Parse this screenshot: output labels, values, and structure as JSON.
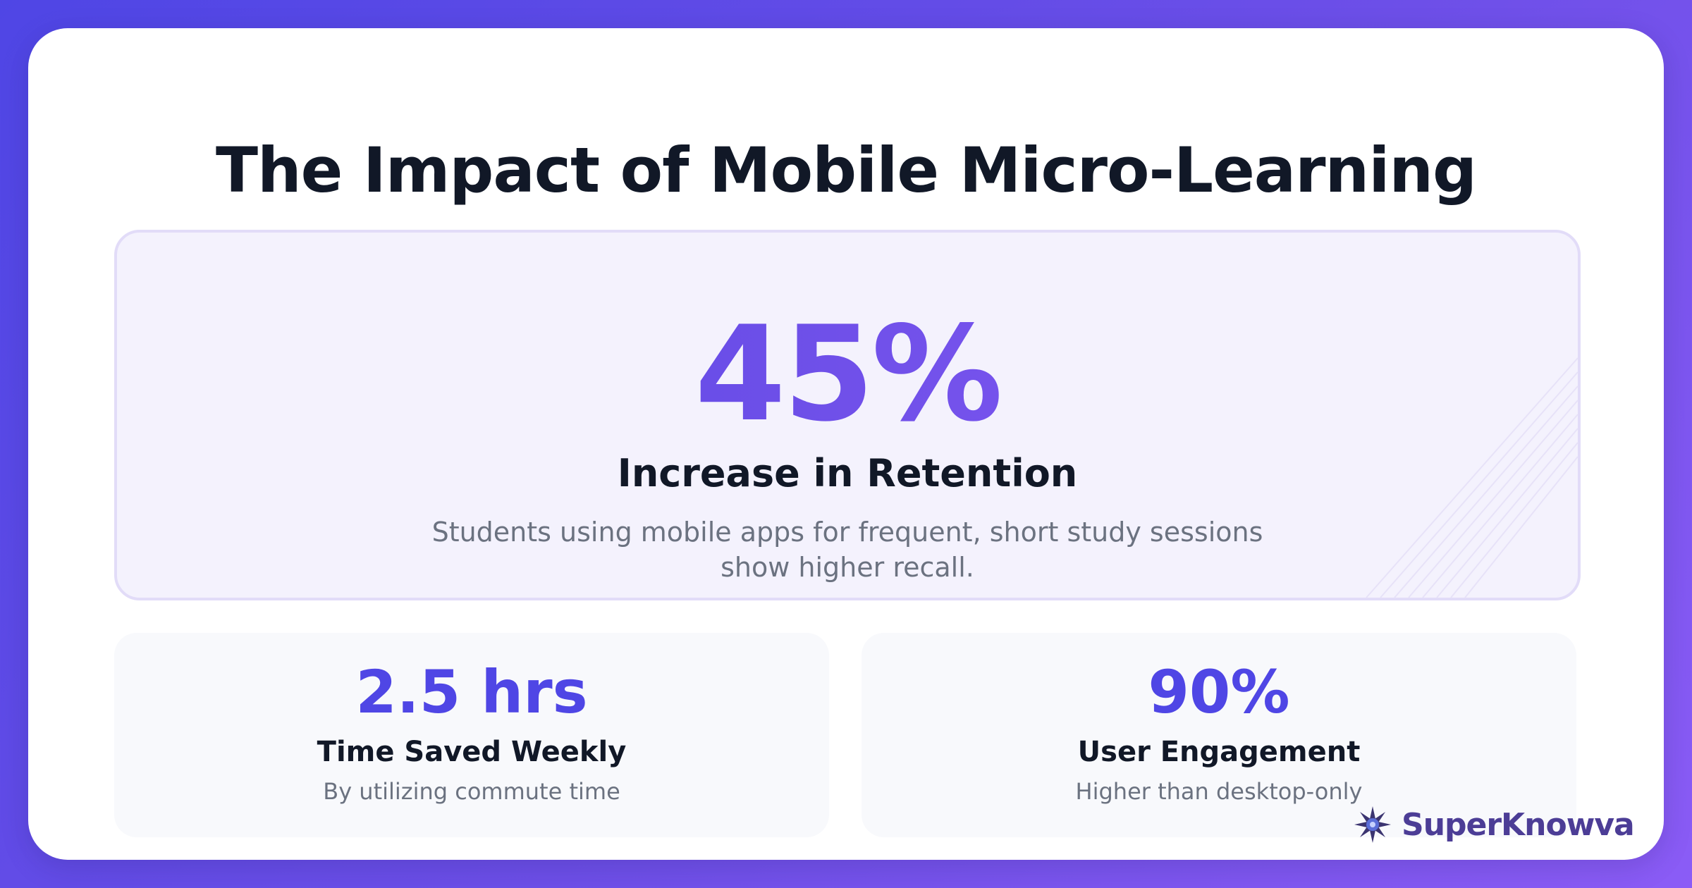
{
  "title": "The Impact of Mobile Micro-Learning",
  "hero": {
    "value": "45%",
    "label": "Increase in Retention",
    "description": "Students using mobile apps for frequent, short study sessions show higher recall."
  },
  "stats": [
    {
      "value": "2.5 hrs",
      "label": "Time Saved Weekly",
      "description": "By utilizing commute time"
    },
    {
      "value": "90%",
      "label": "User Engagement",
      "description": "Higher than desktop-only"
    }
  ],
  "brand": {
    "name": "SuperKnowva",
    "icon": "starburst-logo-icon"
  },
  "colors": {
    "accent": "#4f46e5",
    "accent_secondary": "#8b5cf6",
    "heading": "#111827",
    "muted": "#6b7280"
  }
}
